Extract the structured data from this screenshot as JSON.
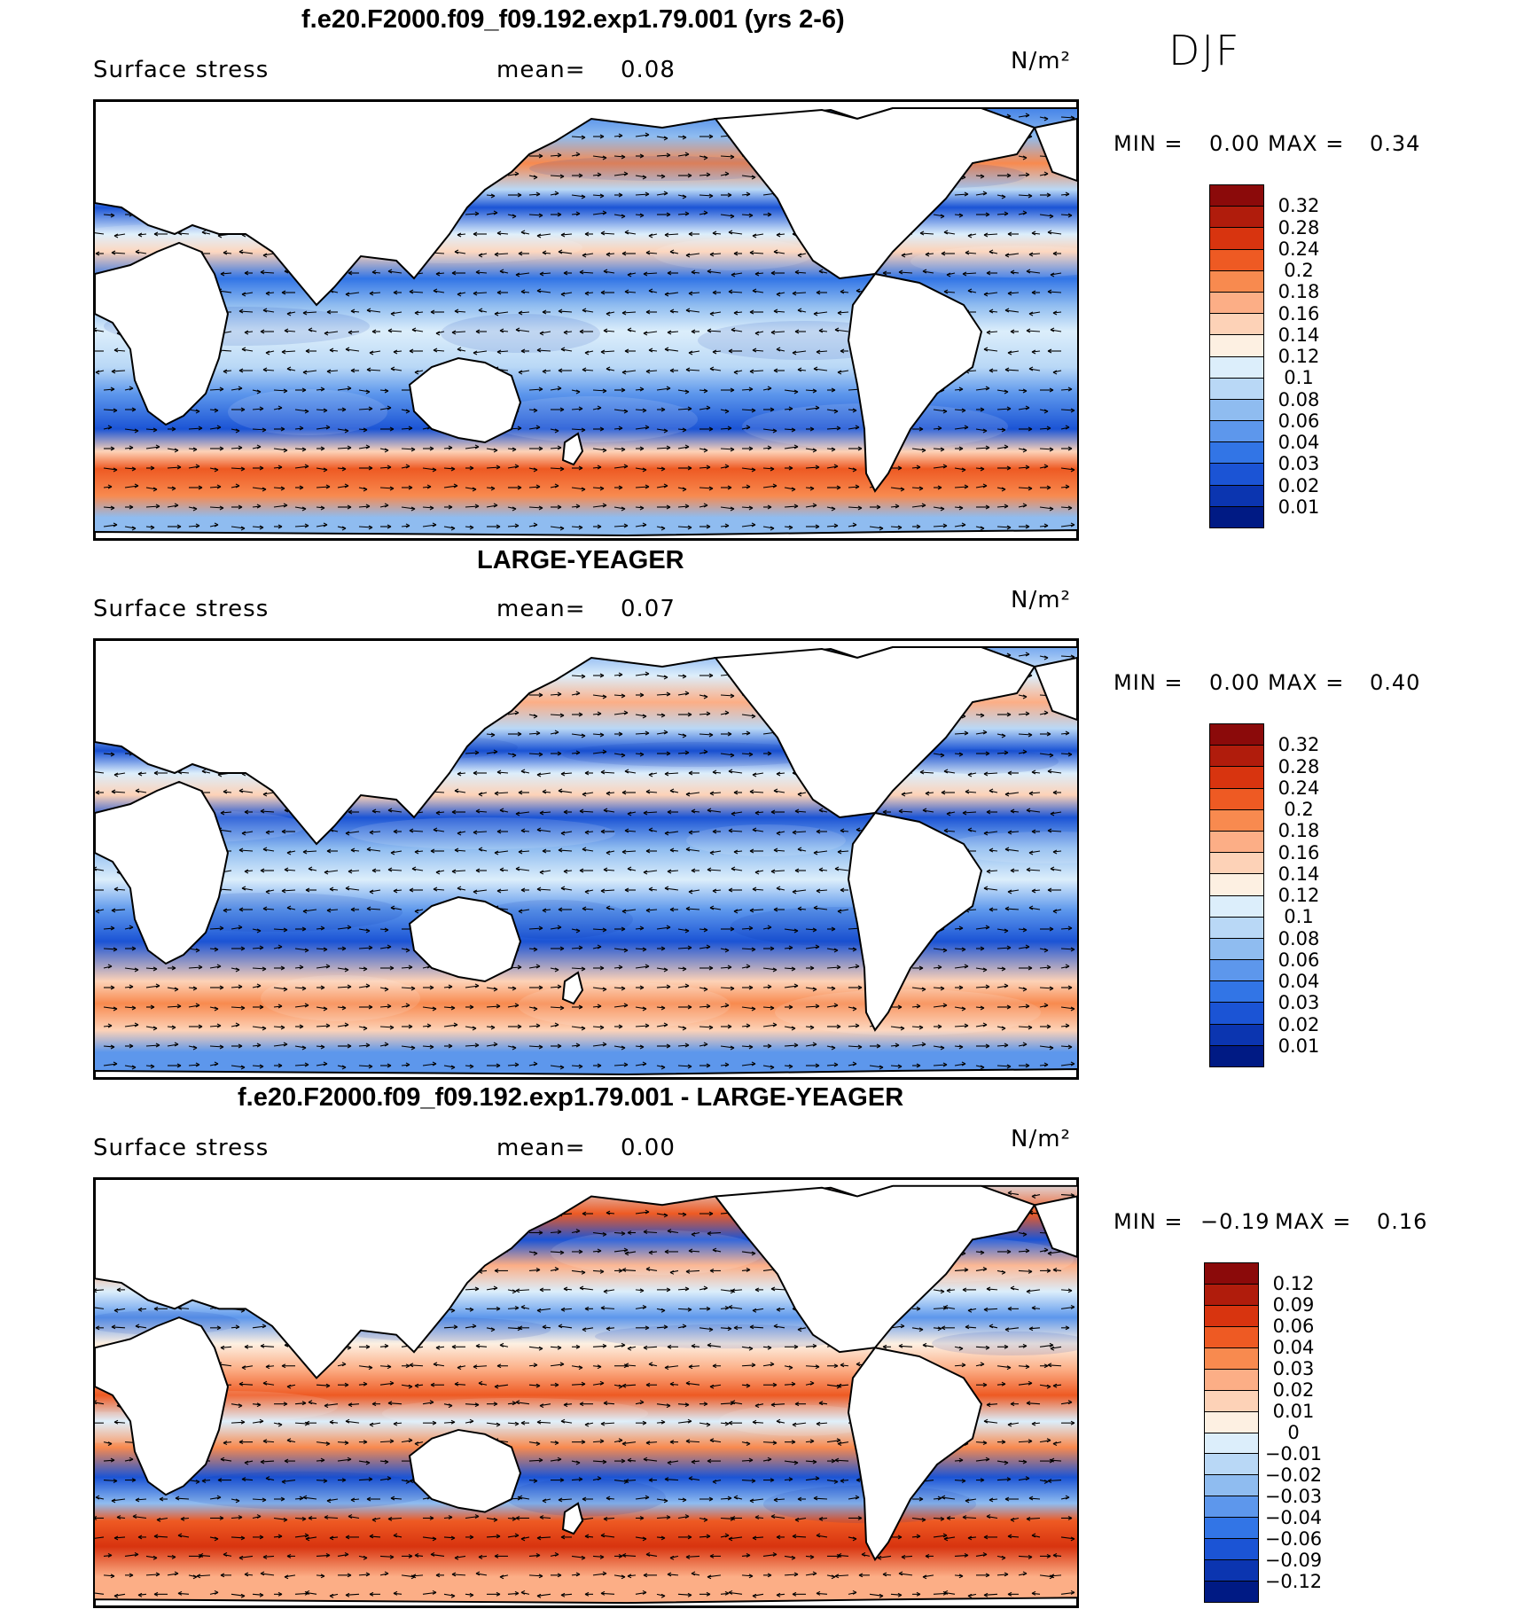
{
  "season": "DJF",
  "panels": [
    {
      "title": "f.e20.F2000.f09_f09.192.exp1.79.001 (yrs 2-6)",
      "variable": "Surface stress",
      "mean_label": "mean=",
      "mean_value": "0.08",
      "units": "N/m²",
      "min_label": "MIN =",
      "min_value": "0.00",
      "max_label": "MAX =",
      "max_value": "0.34",
      "colorbar": {
        "levels": [
          "0.32",
          "0.28",
          "0.24",
          "0.2",
          "0.18",
          "0.16",
          "0.14",
          "0.12",
          "0.1",
          "0.08",
          "0.06",
          "0.04",
          "0.03",
          "0.02",
          "0.01"
        ],
        "colors": [
          "#8b0a0a",
          "#b01c0c",
          "#d8340f",
          "#ee5a23",
          "#f88a4f",
          "#fcae86",
          "#fdd2b7",
          "#fdf0e2",
          "#dceefb",
          "#b9d8f6",
          "#8fbcf0",
          "#5d97ec",
          "#3275e6",
          "#1b54d5",
          "#0b35b0",
          "#001a84"
        ]
      }
    },
    {
      "title": "LARGE-YEAGER",
      "variable": "Surface stress",
      "mean_label": "mean=",
      "mean_value": "0.07",
      "units": "N/m²",
      "min_label": "MIN =",
      "min_value": "0.00",
      "max_label": "MAX =",
      "max_value": "0.40",
      "colorbar": {
        "levels": [
          "0.32",
          "0.28",
          "0.24",
          "0.2",
          "0.18",
          "0.16",
          "0.14",
          "0.12",
          "0.1",
          "0.08",
          "0.06",
          "0.04",
          "0.03",
          "0.02",
          "0.01"
        ],
        "colors": [
          "#8b0a0a",
          "#b01c0c",
          "#d8340f",
          "#ee5a23",
          "#f88a4f",
          "#fcae86",
          "#fdd2b7",
          "#fdf0e2",
          "#dceefb",
          "#b9d8f6",
          "#8fbcf0",
          "#5d97ec",
          "#3275e6",
          "#1b54d5",
          "#0b35b0",
          "#001a84"
        ]
      }
    },
    {
      "title": "f.e20.F2000.f09_f09.192.exp1.79.001 - LARGE-YEAGER",
      "variable": "Surface stress",
      "mean_label": "mean=",
      "mean_value": "0.00",
      "units": "N/m²",
      "min_label": "MIN =",
      "min_value": "−0.19",
      "max_label": "MAX =",
      "max_value": "0.16",
      "colorbar": {
        "levels": [
          "0.12",
          "0.09",
          "0.06",
          "0.04",
          "0.03",
          "0.02",
          "0.01",
          "0",
          "−0.01",
          "−0.02",
          "−0.03",
          "−0.04",
          "−0.06",
          "−0.09",
          "−0.12"
        ],
        "colors": [
          "#8b0a0a",
          "#b01c0c",
          "#d8340f",
          "#ee5a23",
          "#f88a4f",
          "#fcae86",
          "#fdd2b7",
          "#fdf0e2",
          "#dceefb",
          "#b9d8f6",
          "#8fbcf0",
          "#5d97ec",
          "#3275e6",
          "#1b54d5",
          "#0b35b0",
          "#001a84"
        ]
      }
    }
  ]
}
